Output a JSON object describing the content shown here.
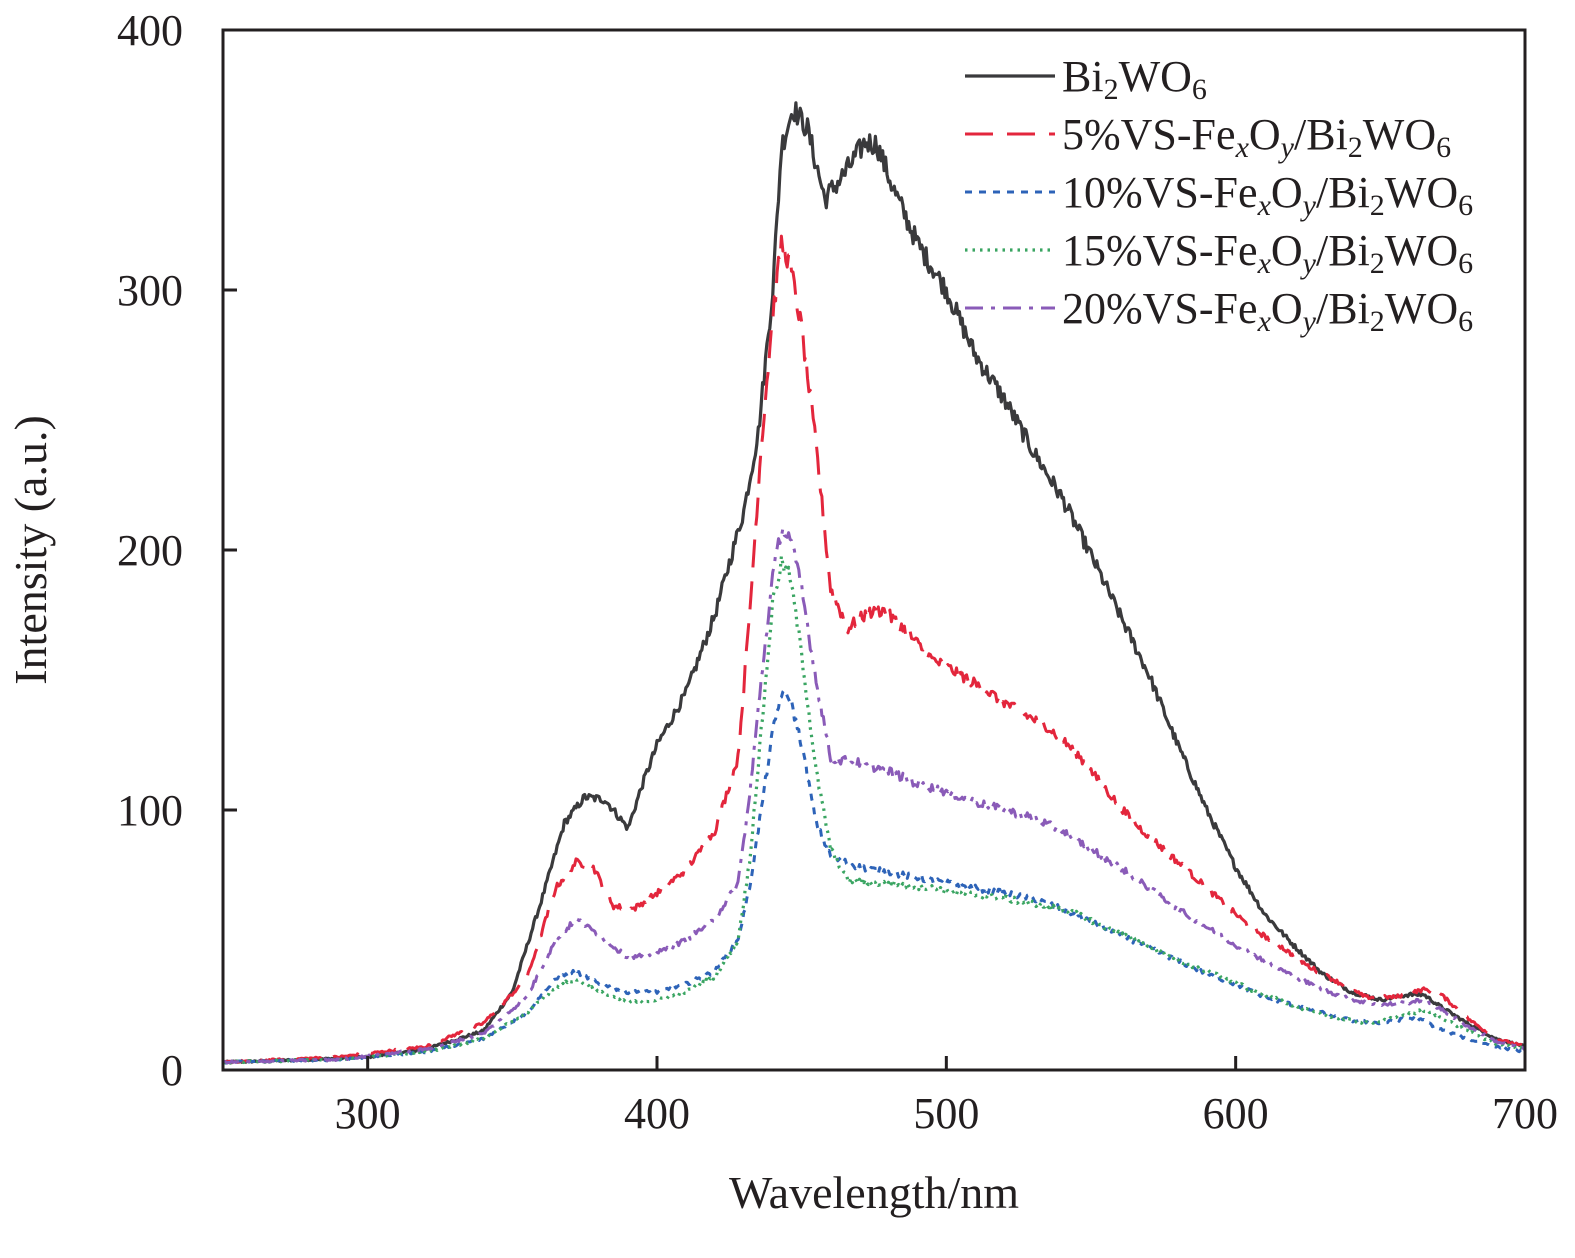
{
  "chart_data": {
    "type": "line",
    "xlabel": "Wavelength/nm",
    "ylabel": "Intensity (a.u.)",
    "xlim": [
      250,
      700
    ],
    "ylim": [
      0,
      400
    ],
    "xticks": [
      300,
      400,
      500,
      600,
      700
    ],
    "yticks": [
      0,
      100,
      200,
      300,
      400
    ],
    "legend_position": "top-right",
    "series": [
      {
        "name": "Bi2WO6",
        "label": {
          "pre": "",
          "mid": "",
          "a": "Bi",
          "b": "2",
          "c": "WO",
          "d": "6"
        },
        "color": "#3a3a3c",
        "dash": "none",
        "width": 3.2,
        "points": [
          [
            250,
            3
          ],
          [
            280,
            4
          ],
          [
            300,
            5
          ],
          [
            320,
            8
          ],
          [
            340,
            15
          ],
          [
            350,
            30
          ],
          [
            360,
            65
          ],
          [
            368,
            95
          ],
          [
            375,
            105
          ],
          [
            382,
            104
          ],
          [
            390,
            93
          ],
          [
            395,
            110
          ],
          [
            400,
            125
          ],
          [
            410,
            145
          ],
          [
            420,
            175
          ],
          [
            430,
            215
          ],
          [
            435,
            245
          ],
          [
            440,
            300
          ],
          [
            443,
            355
          ],
          [
            447,
            370
          ],
          [
            452,
            362
          ],
          [
            458,
            335
          ],
          [
            465,
            345
          ],
          [
            472,
            357
          ],
          [
            476,
            356
          ],
          [
            482,
            338
          ],
          [
            490,
            318
          ],
          [
            500,
            300
          ],
          [
            510,
            275
          ],
          [
            520,
            258
          ],
          [
            530,
            238
          ],
          [
            540,
            220
          ],
          [
            550,
            198
          ],
          [
            560,
            175
          ],
          [
            570,
            152
          ],
          [
            580,
            125
          ],
          [
            590,
            100
          ],
          [
            600,
            78
          ],
          [
            610,
            60
          ],
          [
            620,
            48
          ],
          [
            630,
            37
          ],
          [
            640,
            30
          ],
          [
            650,
            27
          ],
          [
            660,
            29
          ],
          [
            665,
            29
          ],
          [
            670,
            25
          ],
          [
            680,
            18
          ],
          [
            690,
            12
          ],
          [
            700,
            9
          ]
        ]
      },
      {
        "name": "5%VS-FexOy/Bi2WO6",
        "label": {
          "pre": "5%",
          "mid": "VS-Fe",
          "x": "x",
          "o": "O",
          "y": "y",
          "a": "/Bi",
          "b": "2",
          "c": "WO",
          "d": "6"
        },
        "color": "#e3263c",
        "dash": "28 14",
        "width": 3,
        "points": [
          [
            250,
            3
          ],
          [
            290,
            5
          ],
          [
            320,
            9
          ],
          [
            340,
            18
          ],
          [
            355,
            35
          ],
          [
            365,
            70
          ],
          [
            372,
            80
          ],
          [
            378,
            78
          ],
          [
            385,
            63
          ],
          [
            392,
            62
          ],
          [
            400,
            68
          ],
          [
            410,
            77
          ],
          [
            420,
            92
          ],
          [
            428,
            120
          ],
          [
            432,
            175
          ],
          [
            436,
            240
          ],
          [
            440,
            290
          ],
          [
            443,
            318
          ],
          [
            446,
            310
          ],
          [
            450,
            285
          ],
          [
            455,
            240
          ],
          [
            460,
            185
          ],
          [
            466,
            170
          ],
          [
            472,
            175
          ],
          [
            478,
            177
          ],
          [
            485,
            170
          ],
          [
            495,
            158
          ],
          [
            505,
            152
          ],
          [
            515,
            145
          ],
          [
            525,
            138
          ],
          [
            535,
            132
          ],
          [
            545,
            122
          ],
          [
            555,
            108
          ],
          [
            565,
            95
          ],
          [
            575,
            85
          ],
          [
            585,
            75
          ],
          [
            595,
            65
          ],
          [
            605,
            55
          ],
          [
            615,
            48
          ],
          [
            625,
            40
          ],
          [
            635,
            34
          ],
          [
            645,
            28
          ],
          [
            655,
            28
          ],
          [
            665,
            31
          ],
          [
            670,
            30
          ],
          [
            680,
            20
          ],
          [
            690,
            12
          ],
          [
            700,
            9
          ]
        ]
      },
      {
        "name": "10%VS-FexOy/Bi2WO6",
        "label": {
          "pre": "10%",
          "mid": "VS-Fe",
          "x": "x",
          "o": "O",
          "y": "y",
          "a": "/Bi",
          "b": "2",
          "c": "WO",
          "d": "6"
        },
        "color": "#2d63b8",
        "dash": "7 7",
        "width": 3,
        "points": [
          [
            250,
            3
          ],
          [
            290,
            4
          ],
          [
            320,
            7
          ],
          [
            340,
            12
          ],
          [
            355,
            22
          ],
          [
            365,
            35
          ],
          [
            372,
            38
          ],
          [
            380,
            33
          ],
          [
            390,
            30
          ],
          [
            400,
            30
          ],
          [
            410,
            33
          ],
          [
            420,
            38
          ],
          [
            428,
            50
          ],
          [
            432,
            70
          ],
          [
            436,
            100
          ],
          [
            440,
            130
          ],
          [
            443,
            145
          ],
          [
            446,
            143
          ],
          [
            450,
            125
          ],
          [
            455,
            95
          ],
          [
            460,
            82
          ],
          [
            470,
            78
          ],
          [
            480,
            76
          ],
          [
            490,
            74
          ],
          [
            500,
            72
          ],
          [
            510,
            70
          ],
          [
            520,
            68
          ],
          [
            530,
            66
          ],
          [
            540,
            62
          ],
          [
            550,
            57
          ],
          [
            560,
            52
          ],
          [
            570,
            47
          ],
          [
            580,
            42
          ],
          [
            590,
            37
          ],
          [
            600,
            33
          ],
          [
            610,
            28
          ],
          [
            620,
            25
          ],
          [
            630,
            22
          ],
          [
            640,
            19
          ],
          [
            650,
            18
          ],
          [
            660,
            20
          ],
          [
            665,
            19
          ],
          [
            670,
            16
          ],
          [
            680,
            12
          ],
          [
            690,
            9
          ],
          [
            700,
            7
          ]
        ]
      },
      {
        "name": "15%VS-FexOy/Bi2WO6",
        "label": {
          "pre": "15%",
          "mid": "VS-Fe",
          "x": "x",
          "o": "O",
          "y": "y",
          "a": "/Bi",
          "b": "2",
          "c": "WO",
          "d": "6"
        },
        "color": "#3aa562",
        "dash": "2.5 5",
        "width": 3.2,
        "points": [
          [
            250,
            3
          ],
          [
            290,
            4
          ],
          [
            320,
            7
          ],
          [
            340,
            12
          ],
          [
            355,
            22
          ],
          [
            365,
            32
          ],
          [
            372,
            35
          ],
          [
            380,
            30
          ],
          [
            390,
            26
          ],
          [
            400,
            27
          ],
          [
            410,
            30
          ],
          [
            420,
            36
          ],
          [
            428,
            50
          ],
          [
            432,
            80
          ],
          [
            436,
            130
          ],
          [
            440,
            180
          ],
          [
            443,
            195
          ],
          [
            446,
            190
          ],
          [
            450,
            160
          ],
          [
            455,
            115
          ],
          [
            460,
            85
          ],
          [
            466,
            73
          ],
          [
            475,
            72
          ],
          [
            485,
            71
          ],
          [
            495,
            70
          ],
          [
            505,
            68
          ],
          [
            515,
            67
          ],
          [
            525,
            65
          ],
          [
            535,
            63
          ],
          [
            545,
            60
          ],
          [
            555,
            55
          ],
          [
            565,
            50
          ],
          [
            575,
            45
          ],
          [
            585,
            40
          ],
          [
            595,
            36
          ],
          [
            605,
            31
          ],
          [
            615,
            27
          ],
          [
            625,
            23
          ],
          [
            635,
            20
          ],
          [
            645,
            18
          ],
          [
            655,
            20
          ],
          [
            665,
            23
          ],
          [
            670,
            21
          ],
          [
            680,
            15
          ],
          [
            690,
            10
          ],
          [
            700,
            8
          ]
        ]
      },
      {
        "name": "20%VS-FexOy/Bi2WO6",
        "label": {
          "pre": "20%",
          "mid": "VS-Fe",
          "x": "x",
          "o": "O",
          "y": "y",
          "a": "/Bi",
          "b": "2",
          "c": "WO",
          "d": "6"
        },
        "color": "#8a5bb8",
        "dash": "18 8 4 8",
        "width": 3,
        "points": [
          [
            250,
            3
          ],
          [
            290,
            4
          ],
          [
            320,
            8
          ],
          [
            340,
            14
          ],
          [
            355,
            28
          ],
          [
            365,
            50
          ],
          [
            372,
            58
          ],
          [
            380,
            52
          ],
          [
            390,
            43
          ],
          [
            400,
            45
          ],
          [
            410,
            50
          ],
          [
            420,
            58
          ],
          [
            428,
            72
          ],
          [
            432,
            105
          ],
          [
            436,
            150
          ],
          [
            440,
            190
          ],
          [
            443,
            208
          ],
          [
            446,
            205
          ],
          [
            450,
            185
          ],
          [
            455,
            150
          ],
          [
            460,
            120
          ],
          [
            470,
            118
          ],
          [
            480,
            115
          ],
          [
            490,
            110
          ],
          [
            500,
            107
          ],
          [
            510,
            103
          ],
          [
            520,
            100
          ],
          [
            530,
            97
          ],
          [
            540,
            92
          ],
          [
            550,
            85
          ],
          [
            560,
            78
          ],
          [
            570,
            70
          ],
          [
            580,
            62
          ],
          [
            590,
            55
          ],
          [
            600,
            48
          ],
          [
            610,
            42
          ],
          [
            620,
            36
          ],
          [
            630,
            31
          ],
          [
            640,
            27
          ],
          [
            650,
            25
          ],
          [
            660,
            26
          ],
          [
            665,
            27
          ],
          [
            670,
            24
          ],
          [
            680,
            17
          ],
          [
            690,
            11
          ],
          [
            700,
            8
          ]
        ]
      }
    ]
  }
}
